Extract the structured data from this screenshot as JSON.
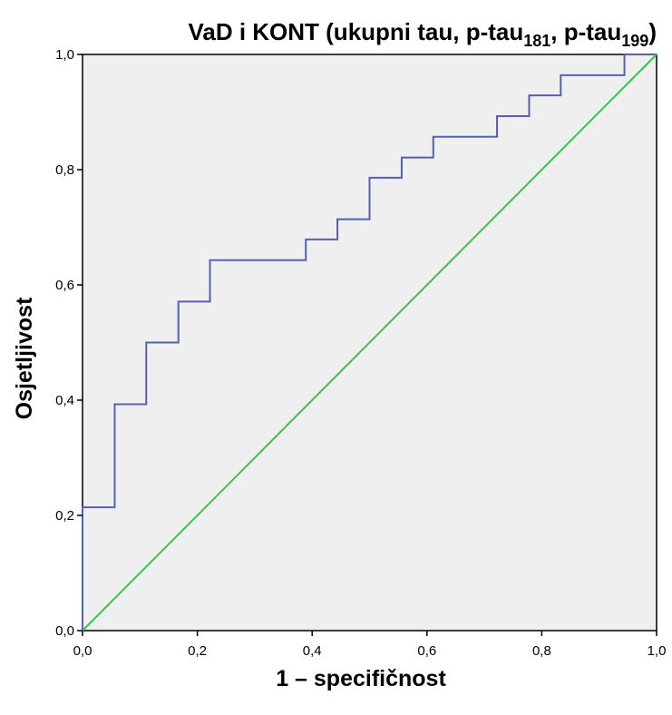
{
  "chart_data": {
    "type": "line",
    "title": {
      "main": "VaD i KONT (ukupni tau, p-tau",
      "sub1": "181",
      "mid": ", p-tau",
      "sub2": "199",
      "end": ")"
    },
    "xlabel": "1 – specifičnost",
    "ylabel": "Osjetljivost",
    "xlim": [
      0,
      1
    ],
    "ylim": [
      0,
      1
    ],
    "x_ticks": [
      "0,0",
      "0,2",
      "0,4",
      "0,6",
      "0,8",
      "1,0"
    ],
    "y_ticks": [
      "0,0",
      "0,2",
      "0,4",
      "0,6",
      "0,8",
      "1,0"
    ],
    "grid": false,
    "plot_background": "#efefef",
    "series": [
      {
        "color": "#5561b0",
        "step": true,
        "x": [
          0,
          0,
          0.056,
          0.056,
          0.111,
          0.111,
          0.167,
          0.167,
          0.222,
          0.222,
          0.389,
          0.389,
          0.444,
          0.444,
          0.5,
          0.5,
          0.556,
          0.556,
          0.611,
          0.611,
          0.722,
          0.722,
          0.778,
          0.778,
          0.833,
          0.833,
          0.944,
          0.944,
          1.0
        ],
        "y": [
          0,
          0.214,
          0.214,
          0.393,
          0.393,
          0.5,
          0.5,
          0.571,
          0.571,
          0.643,
          0.643,
          0.679,
          0.679,
          0.714,
          0.714,
          0.786,
          0.786,
          0.821,
          0.821,
          0.857,
          0.857,
          0.893,
          0.893,
          0.929,
          0.929,
          0.964,
          0.964,
          1.0,
          1.0
        ]
      },
      {
        "color": "#3dbf5a",
        "x": [
          0,
          1
        ],
        "y": [
          0,
          1
        ]
      }
    ]
  }
}
